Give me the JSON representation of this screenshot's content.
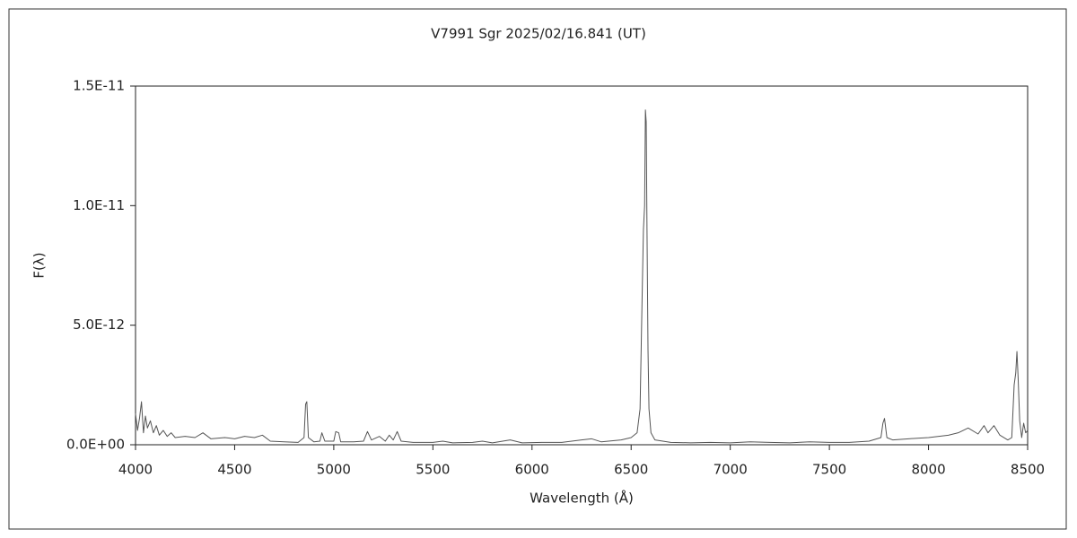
{
  "chart_data": {
    "type": "line",
    "title": "V7991 Sgr  2025/02/16.841 (UT)",
    "x_label": "Wavelength (Å)",
    "y_label": "F(λ)",
    "color": "#555555",
    "xlim": [
      4000,
      8500
    ],
    "xticks": [
      4000,
      4500,
      5000,
      5500,
      6000,
      6500,
      7000,
      7500,
      8000,
      8500
    ],
    "ylim": [
      0,
      1.5e-11
    ],
    "yticks": [
      {
        "value": 0,
        "label": "0.0E+00"
      },
      {
        "value": 5e-12,
        "label": "5.0E-12"
      },
      {
        "value": 1e-11,
        "label": "1.0E-11"
      },
      {
        "value": 1.5e-11,
        "label": "1.5E-11"
      }
    ],
    "grid": false,
    "x": [
      4000,
      4010,
      4020,
      4030,
      4040,
      4050,
      4060,
      4075,
      4090,
      4105,
      4120,
      4140,
      4160,
      4180,
      4200,
      4250,
      4300,
      4340,
      4380,
      4450,
      4500,
      4550,
      4600,
      4640,
      4680,
      4750,
      4820,
      4850,
      4858,
      4864,
      4872,
      4900,
      4930,
      4940,
      4955,
      5000,
      5010,
      5025,
      5035,
      5100,
      5150,
      5170,
      5190,
      5230,
      5260,
      5280,
      5300,
      5320,
      5340,
      5400,
      5500,
      5550,
      5600,
      5700,
      5750,
      5800,
      5890,
      5950,
      6050,
      6150,
      6250,
      6300,
      6350,
      6450,
      6500,
      6530,
      6545,
      6555,
      6562,
      6568,
      6572,
      6576,
      6580,
      6585,
      6590,
      6600,
      6620,
      6700,
      6800,
      6900,
      7000,
      7100,
      7200,
      7300,
      7400,
      7500,
      7600,
      7700,
      7760,
      7770,
      7778,
      7790,
      7820,
      7900,
      8000,
      8100,
      8150,
      8200,
      8250,
      8280,
      8300,
      8330,
      8360,
      8400,
      8420,
      8432,
      8440,
      8446,
      8452,
      8460,
      8470,
      8480,
      8490,
      8500
    ],
    "values": [
      1.3e-12,
      6e-13,
      1.1e-12,
      1.8e-12,
      5e-13,
      1.2e-12,
      7e-13,
      1e-12,
      5e-13,
      8e-13,
      4e-13,
      6e-13,
      3.5e-13,
      5e-13,
      3e-13,
      3.5e-13,
      3e-13,
      5e-13,
      2.5e-13,
      3e-13,
      2.5e-13,
      3.5e-13,
      3e-13,
      4e-13,
      1.5e-13,
      1.2e-13,
      1e-13,
      3e-13,
      1.7e-12,
      1.8e-12,
      3e-13,
      1.2e-13,
      1.5e-13,
      5e-13,
      1.5e-13,
      1.5e-13,
      5.5e-13,
      5e-13,
      1.2e-13,
      1.2e-13,
      1.5e-13,
      5.5e-13,
      2e-13,
      3.5e-13,
      1.5e-13,
      4e-13,
      2e-13,
      5.5e-13,
      1.5e-13,
      1e-13,
      1e-13,
      1.5e-13,
      8e-14,
      1e-13,
      1.5e-13,
      8e-14,
      2e-13,
      8e-14,
      1e-13,
      1e-13,
      2e-13,
      2.5e-13,
      1.2e-13,
      2e-13,
      3e-13,
      5e-13,
      1.5e-12,
      6e-12,
      9e-12,
      1e-11,
      1.4e-11,
      1.35e-11,
      9e-12,
      4e-12,
      1.5e-12,
      5e-13,
      2e-13,
      1e-13,
      8e-14,
      1e-13,
      8e-14,
      1.2e-13,
      1e-13,
      8e-14,
      1.2e-13,
      1e-13,
      1e-13,
      1.5e-13,
      3e-13,
      9e-13,
      1.1e-12,
      3e-13,
      2e-13,
      2.5e-13,
      3e-13,
      4e-13,
      5e-13,
      7e-13,
      4.5e-13,
      8e-13,
      5e-13,
      8e-13,
      4e-13,
      2e-13,
      3e-13,
      2.5e-12,
      3e-12,
      3.9e-12,
      2.8e-12,
      1e-12,
      3e-13,
      9e-13,
      5e-13,
      6e-13
    ]
  }
}
